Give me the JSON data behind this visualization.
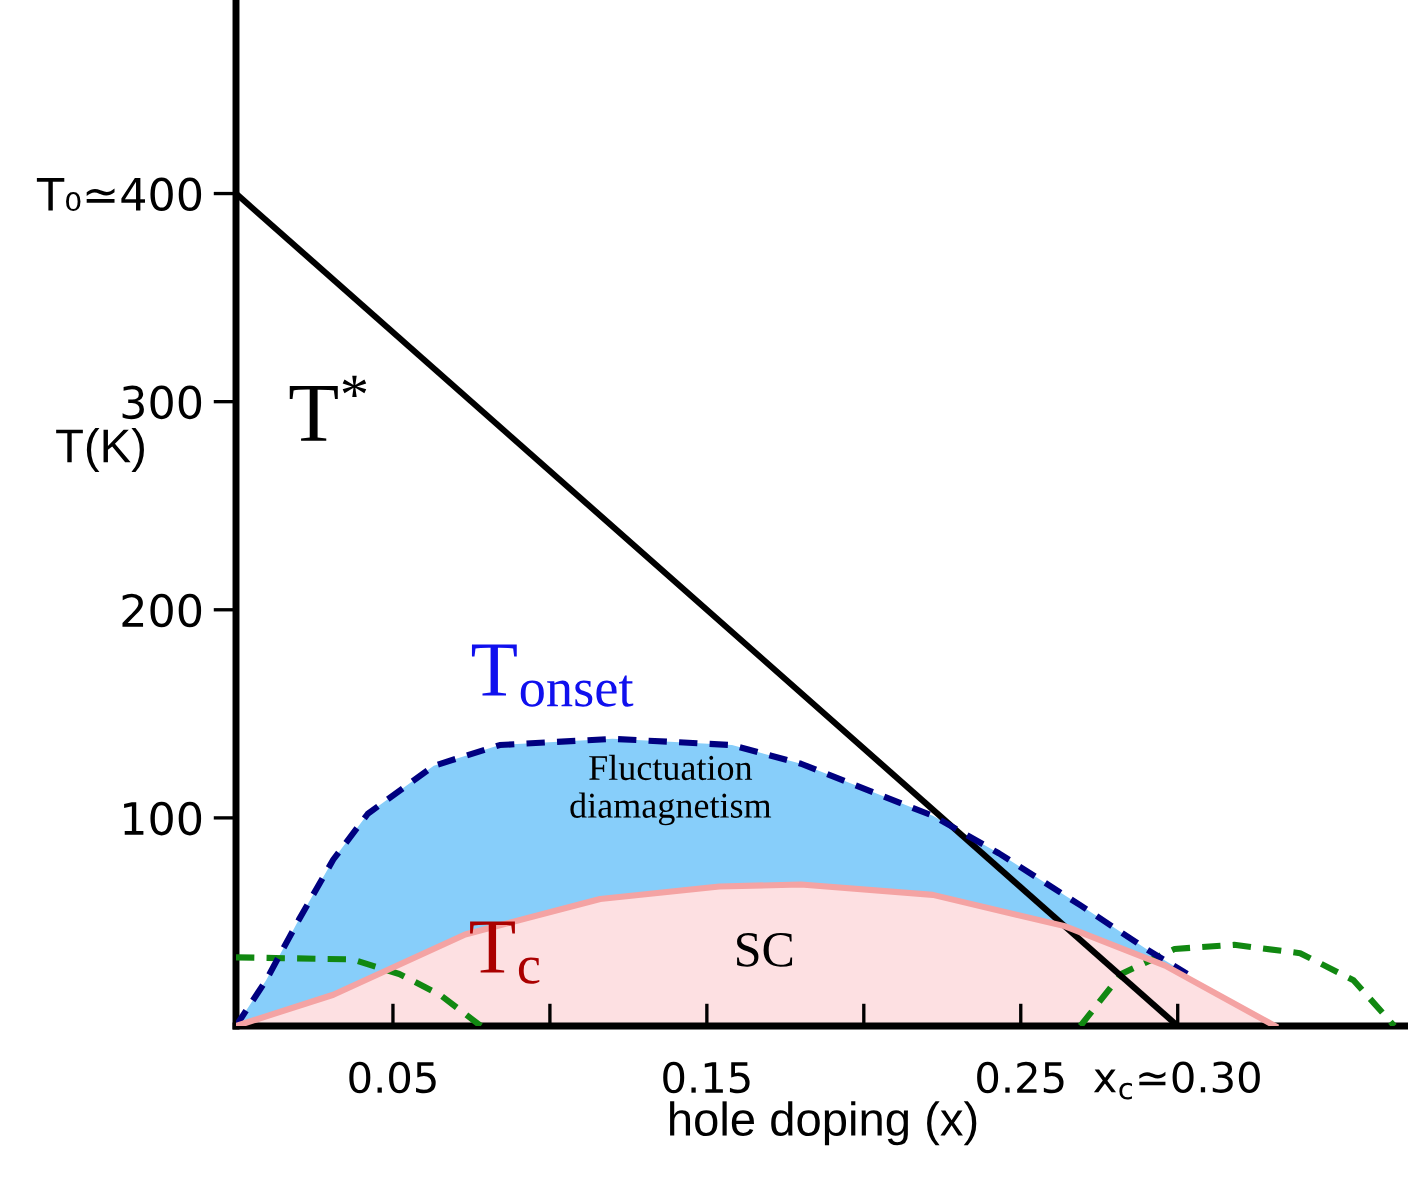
{
  "chart_data": {
    "type": "line",
    "xlabel": "hole doping (x)",
    "ylabel": "T(K)",
    "xlim": [
      0,
      0.374
    ],
    "ylim": [
      0,
      493
    ],
    "xticks": [
      {
        "value": 0.05,
        "label": "0.05"
      },
      {
        "value": 0.1,
        "label": null
      },
      {
        "value": 0.15,
        "label": "0.15"
      },
      {
        "value": 0.2,
        "label": null
      },
      {
        "value": 0.25,
        "label": "0.25"
      },
      {
        "value": 0.3,
        "label": "x$_{c}$≃0.30"
      }
    ],
    "yticks": [
      100,
      200,
      300,
      {
        "value": 400,
        "label": "T₀≃400"
      }
    ],
    "grid": false,
    "legend": false,
    "marker": "none",
    "series": [
      {
        "type": "area",
        "line_style": "dashed",
        "color": "#87cefa",
        "x": [
          0,
          0.0096,
          0.02,
          0.031,
          0.042,
          0.063,
          0.084,
          0.12,
          0.158,
          0.18,
          0.222,
          0.243,
          0.269,
          0.29,
          0.303
        ],
        "values": [
          0,
          22,
          51,
          80,
          102,
          125,
          135,
          138,
          135,
          126,
          101,
          83,
          58,
          37,
          25
        ]
      },
      {
        "type": "area",
        "line_style": "solid",
        "color": "#fde0e2",
        "x": [
          0,
          0.031,
          0.073,
          0.116,
          0.154,
          0.18,
          0.222,
          0.264,
          0.296,
          0.331
        ],
        "values": [
          0,
          15,
          44,
          61,
          67,
          68,
          63,
          48,
          29,
          0
        ]
      },
      {
        "line_style": "dashed",
        "color": "#118811",
        "x": [
          0,
          0.037,
          0.052,
          0.065,
          0.078
        ],
        "values": [
          33,
          32,
          25,
          15,
          0
        ]
      },
      {
        "line_style": "dashed",
        "color": "#118811",
        "x": [
          0.269,
          0.282,
          0.299,
          0.318,
          0.339,
          0.356,
          0.369
        ],
        "values": [
          0,
          25,
          37,
          39,
          35,
          22,
          0
        ]
      },
      {
        "line_style": "solid",
        "color": "#000000",
        "x": [
          0,
          0.3
        ],
        "values": [
          400,
          0
        ]
      }
    ],
    "annotations": [
      "T$^{*}$",
      "T$_{onset}$",
      "T$_{c}$",
      "Fluctuation\ndiamagnetism",
      "SC"
    ]
  }
}
